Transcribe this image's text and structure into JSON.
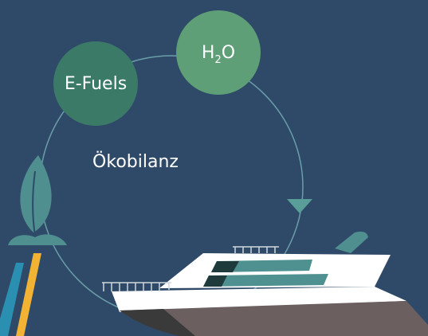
{
  "labels": {
    "e_fuels": "E-Fuels",
    "h2o": [
      "H",
      "2",
      "O"
    ],
    "oekobilanz": "Ökobilanz"
  }
}
